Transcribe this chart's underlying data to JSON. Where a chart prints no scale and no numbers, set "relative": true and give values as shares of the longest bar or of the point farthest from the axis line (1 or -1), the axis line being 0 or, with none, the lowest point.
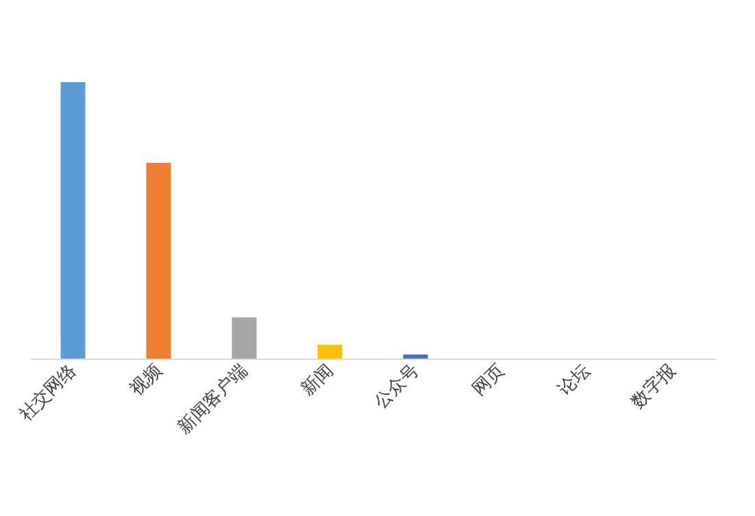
{
  "chart_data": {
    "type": "bar",
    "relative": true,
    "categories": [
      "社交网络",
      "视频",
      "新闻客户端",
      "新闻",
      "公众号",
      "网页",
      "论坛",
      "数字报"
    ],
    "values": [
      1,
      0.708,
      0.149,
      0.05,
      0.015,
      0,
      0,
      0
    ],
    "colors": [
      "#5b9bd5",
      "#ed7d31",
      "#a5a5a5",
      "#ffc000",
      "#4472c4",
      "#70ad47",
      "#264478",
      "#9e480e"
    ],
    "grid": false
  }
}
